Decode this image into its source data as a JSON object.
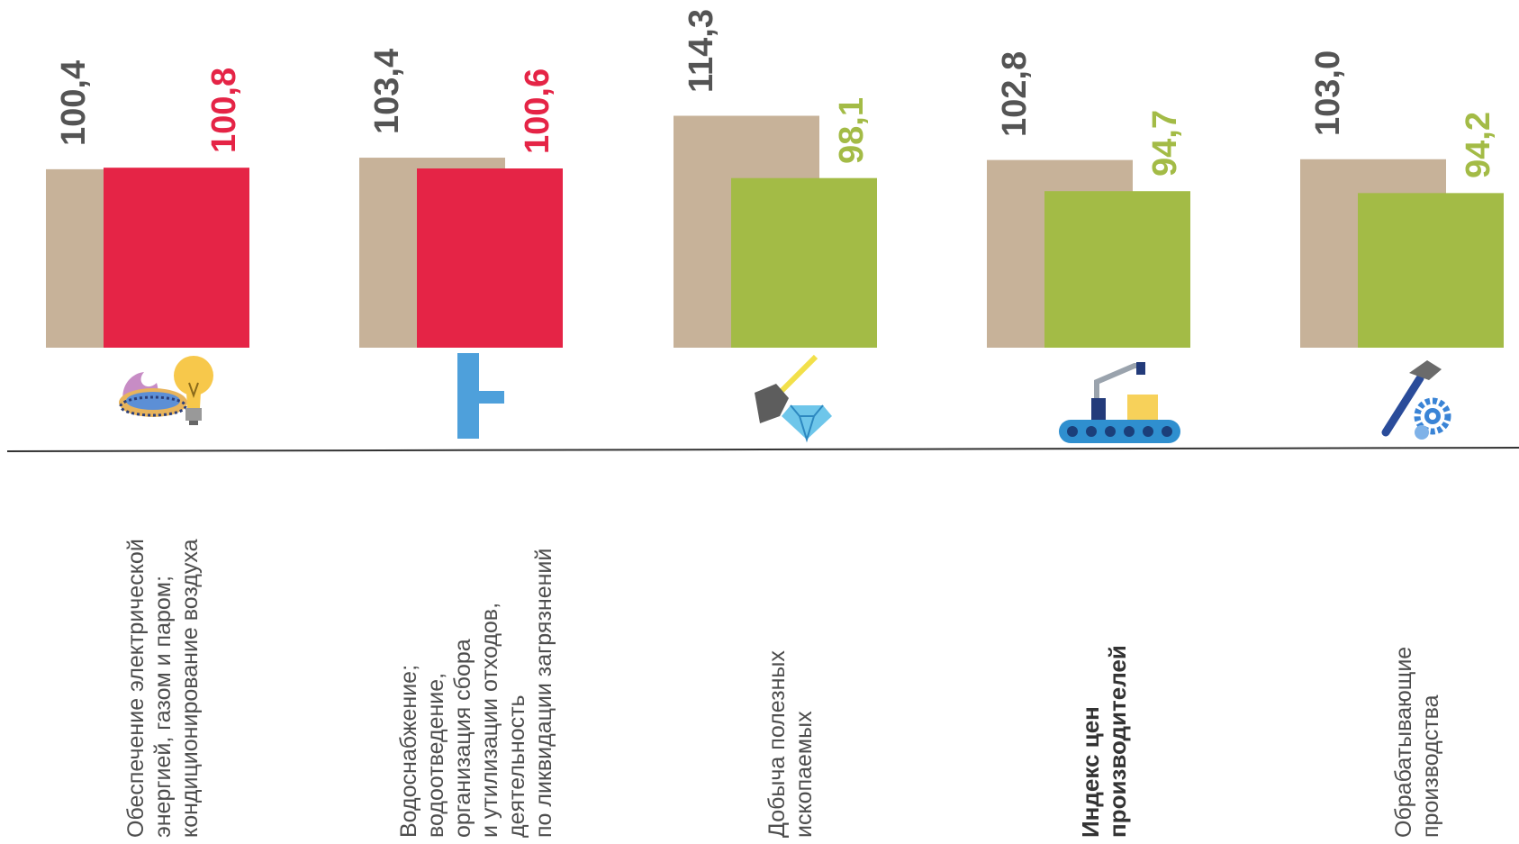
{
  "chart_data": {
    "type": "bar",
    "categories": [
      "Обеспечение электрической\nэнергией, газом и паром;\nкондиционирование воздуха",
      "Водоснабжение;\nводоотведение,\nорганизация сбора\nи утилизации отходов,\nдеятельность\nпо ликвидации загрязнений",
      "Добыча полезных\nископаемых",
      "Индекс цен\nпроизводителей",
      "Обрабатывающие\nпроизводства"
    ],
    "series": [
      {
        "values": [
          100.4,
          103.4,
          114.3,
          102.8,
          103.0
        ]
      },
      {
        "values": [
          100.8,
          100.6,
          98.1,
          94.7,
          94.2
        ]
      }
    ],
    "value_labels": [
      [
        "100,4",
        "103,4",
        "114,3",
        "102,8",
        "103,0"
      ],
      [
        "100,8",
        "100,6",
        "98,1",
        "94,7",
        "94,2"
      ]
    ],
    "bold_category": 3,
    "icons": [
      "gas-flame-and-light-bulb-icon",
      "water-pipe-icon",
      "shovel-and-diamond-icon",
      "conveyor-robot-arm-icon",
      "hammer-and-gear-icon"
    ],
    "ylim": [
      0,
      120
    ],
    "grid": false,
    "colors": {
      "series1": "#c7b299",
      "series2_up": "#e52446",
      "series2_down": "#a3bb46",
      "label1": "#545454",
      "baseline": "#333333"
    }
  }
}
